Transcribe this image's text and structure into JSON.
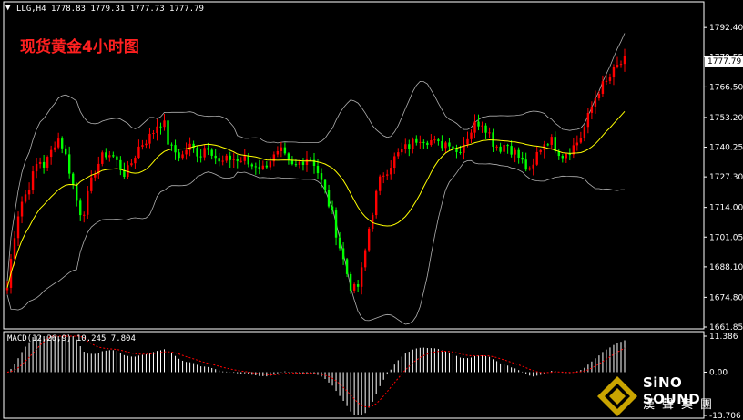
{
  "header": {
    "symbol": "LLG,H4",
    "ohlc": "1778.83 1779.31 1777.73 1777.79",
    "title_cn": "现货黄金4小时图"
  },
  "macd_label": "MACD(12,26,9) 10.245 7.804",
  "current_price": "1777.79",
  "logo": {
    "en": "SiNO SOUND",
    "cn": "漢聲集團"
  },
  "colors": {
    "bull": "#ff0000",
    "bear": "#00ff00",
    "ma": "#ffff00",
    "bands": "#b0b0b0",
    "macd_hist": "#ffffff",
    "macd_signal": "#ff0000",
    "title": "#ff2020"
  },
  "chart_data": [
    {
      "type": "candlestick",
      "title": "现货黄金4小时图",
      "ylim": [
        1661.85,
        1802.0
      ],
      "y_ticks": [
        1792.4,
        1779.55,
        1766.5,
        1753.2,
        1740.25,
        1727.3,
        1714.0,
        1701.05,
        1688.1,
        1674.8,
        1661.85
      ],
      "y_tick_labels": [
        "1792.40",
        "1779.55",
        "1766.50",
        "1753.20",
        "1740.25",
        "1727.30",
        "1714.00",
        "1701.05",
        "1688.10",
        "1674.80",
        "1661.85"
      ],
      "bands": "Bollinger Bands",
      "ma": "middle moving average (yellow)",
      "close_path": [
        1679,
        1700,
        1715,
        1720,
        1727,
        1735,
        1732,
        1738,
        1745,
        1740,
        1730,
        1718,
        1710,
        1720,
        1730,
        1735,
        1738,
        1736,
        1732,
        1728,
        1734,
        1740,
        1743,
        1745,
        1750,
        1752,
        1740,
        1738,
        1736,
        1741,
        1739,
        1737,
        1742,
        1738,
        1733,
        1734,
        1736,
        1734,
        1735,
        1732,
        1733,
        1731,
        1735,
        1736,
        1738,
        1733,
        1731,
        1734,
        1736,
        1735,
        1728,
        1720,
        1712,
        1700,
        1690,
        1680,
        1677,
        1688,
        1705,
        1718,
        1728,
        1731,
        1735,
        1738,
        1740,
        1742,
        1745,
        1744,
        1743,
        1741,
        1742,
        1743,
        1738,
        1741,
        1746,
        1750,
        1752,
        1748,
        1742,
        1740,
        1742,
        1739,
        1736,
        1732,
        1728,
        1738,
        1742,
        1744,
        1740,
        1737,
        1739,
        1741,
        1745,
        1752,
        1760,
        1766,
        1768,
        1772,
        1776,
        1777.79
      ]
    },
    {
      "type": "bar",
      "title": "MACD(12,26,9) 10.245 7.804",
      "ylim": [
        -13.706,
        11.386
      ],
      "y_ticks": [
        11.386,
        0.0,
        -13.706
      ],
      "y_tick_labels": [
        "11.386",
        "0.00",
        "-13.706"
      ],
      "series_names": [
        "MACD",
        "Signal"
      ]
    }
  ]
}
